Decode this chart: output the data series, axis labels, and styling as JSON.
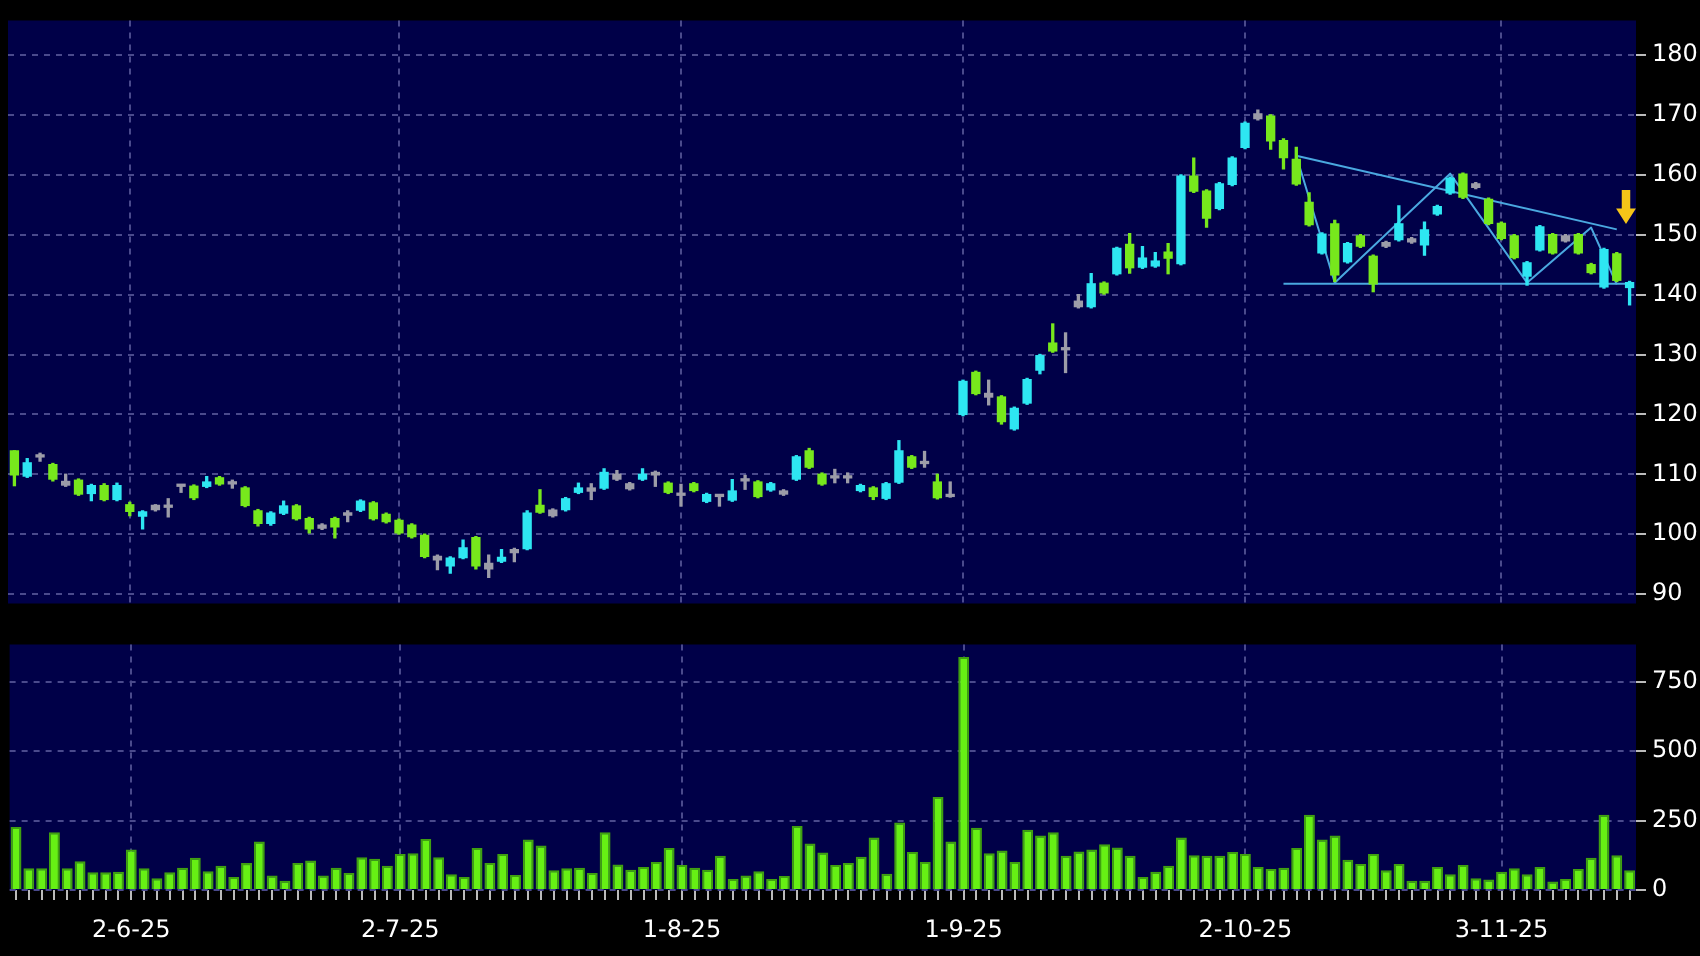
{
  "chart_data": [
    {
      "type": "candlestick",
      "categories": [
        null,
        null,
        null,
        null,
        null,
        null,
        null,
        null,
        null,
        null,
        null,
        null,
        null,
        null,
        null,
        null,
        null,
        null,
        null,
        null,
        null,
        null,
        null,
        null,
        null,
        null,
        null,
        null,
        null,
        null,
        null,
        null,
        null,
        null,
        null,
        null,
        null,
        null,
        null,
        null,
        null,
        null,
        null,
        null,
        null,
        null,
        null,
        null,
        null,
        null,
        null,
        null,
        null,
        null,
        null,
        null,
        null,
        null,
        null,
        null,
        null,
        null,
        null,
        null,
        null,
        null,
        null,
        null,
        null,
        null,
        null,
        null,
        null,
        null,
        null,
        null,
        null,
        null,
        null,
        null,
        null,
        null,
        null,
        null,
        null,
        null,
        null,
        null,
        null,
        null,
        null,
        null,
        null,
        null,
        null,
        null,
        null,
        null,
        null,
        null,
        null,
        null,
        null,
        null,
        null,
        null,
        null,
        null,
        null,
        null,
        null,
        null,
        null,
        null,
        null,
        null,
        null,
        null,
        null,
        null,
        null,
        null,
        null,
        null,
        null,
        null,
        null
      ],
      "ohlc": [
        [
          113.9,
          113.9,
          108.1,
          109.9
        ],
        [
          109.7,
          112.6,
          109.5,
          111.9
        ],
        [
          112.9,
          113.5,
          112.2,
          112.9
        ],
        [
          111.6,
          111.8,
          108.9,
          109.2
        ],
        [
          108.8,
          110.0,
          108.0,
          108.2
        ],
        [
          109.0,
          109.2,
          106.5,
          106.7
        ],
        [
          106.8,
          108.3,
          105.6,
          108.1
        ],
        [
          108.1,
          108.4,
          105.6,
          105.8
        ],
        [
          105.8,
          108.5,
          105.6,
          108.1
        ],
        [
          104.9,
          105.3,
          103.1,
          103.8
        ],
        [
          103.0,
          103.9,
          100.9,
          103.7
        ],
        [
          104.1,
          104.9,
          103.9,
          104.8
        ],
        [
          104.5,
          105.9,
          102.9,
          104.5
        ],
        [
          108.0,
          108.2,
          107.0,
          108.0
        ],
        [
          108.0,
          108.2,
          105.8,
          106.1
        ],
        [
          108.0,
          109.6,
          107.8,
          108.7
        ],
        [
          109.4,
          109.6,
          108.2,
          108.4
        ],
        [
          108.4,
          109.0,
          107.7,
          108.4
        ],
        [
          107.7,
          107.9,
          104.6,
          104.8
        ],
        [
          103.9,
          104.1,
          101.4,
          101.8
        ],
        [
          101.8,
          103.7,
          101.5,
          103.5
        ],
        [
          103.5,
          105.5,
          103.3,
          104.7
        ],
        [
          104.7,
          104.9,
          102.4,
          102.6
        ],
        [
          102.6,
          102.8,
          100.2,
          100.9
        ],
        [
          101.5,
          101.7,
          100.8,
          101.0
        ],
        [
          102.6,
          102.8,
          99.4,
          101.2
        ],
        [
          103.2,
          103.9,
          102.1,
          103.2
        ],
        [
          104.0,
          105.7,
          103.8,
          105.5
        ],
        [
          105.2,
          105.4,
          102.4,
          102.6
        ],
        [
          103.3,
          103.5,
          101.9,
          102.1
        ],
        [
          102.3,
          102.5,
          100.0,
          100.2
        ],
        [
          101.5,
          101.7,
          99.4,
          99.6
        ],
        [
          99.8,
          100.0,
          96.1,
          96.3
        ],
        [
          96.3,
          96.5,
          94.1,
          95.7
        ],
        [
          94.7,
          96.2,
          93.5,
          96.0
        ],
        [
          96.1,
          99.0,
          95.9,
          97.7
        ],
        [
          99.4,
          99.6,
          94.2,
          94.7
        ],
        [
          95.1,
          96.5,
          92.8,
          94.2
        ],
        [
          95.5,
          97.4,
          95.3,
          96.1
        ],
        [
          97.4,
          97.6,
          95.4,
          96.9
        ],
        [
          97.6,
          103.9,
          97.4,
          103.5
        ],
        [
          104.8,
          107.4,
          103.5,
          103.7
        ],
        [
          104.0,
          104.2,
          102.9,
          103.1
        ],
        [
          104.1,
          106.1,
          103.9,
          105.9
        ],
        [
          107.0,
          108.5,
          106.8,
          107.7
        ],
        [
          107.7,
          108.4,
          105.8,
          107.2
        ],
        [
          107.7,
          110.9,
          107.5,
          110.3
        ],
        [
          110.0,
          110.6,
          109.0,
          109.2
        ],
        [
          108.4,
          108.6,
          107.4,
          107.6
        ],
        [
          109.2,
          110.9,
          109.0,
          110.0
        ],
        [
          110.3,
          110.5,
          108.0,
          109.9
        ],
        [
          108.5,
          108.7,
          106.8,
          107.0
        ],
        [
          106.5,
          108.3,
          104.7,
          106.5
        ],
        [
          108.4,
          108.6,
          107.1,
          107.3
        ],
        [
          105.5,
          106.8,
          105.3,
          106.6
        ],
        [
          106.5,
          106.5,
          104.7,
          106.3
        ],
        [
          105.7,
          109.1,
          105.5,
          107.2
        ],
        [
          108.9,
          109.8,
          107.5,
          108.9
        ],
        [
          108.7,
          108.9,
          106.1,
          106.3
        ],
        [
          107.4,
          108.6,
          107.2,
          108.4
        ],
        [
          107.2,
          107.4,
          106.5,
          106.7
        ],
        [
          109.2,
          113.1,
          109.0,
          112.9
        ],
        [
          113.9,
          114.3,
          111.0,
          111.2
        ],
        [
          110.0,
          110.2,
          108.2,
          108.4
        ],
        [
          109.4,
          110.8,
          108.6,
          109.4
        ],
        [
          109.4,
          110.2,
          108.6,
          109.4
        ],
        [
          107.3,
          108.3,
          107.1,
          108.1
        ],
        [
          107.7,
          107.9,
          105.8,
          106.3
        ],
        [
          106.0,
          108.6,
          105.8,
          108.4
        ],
        [
          108.7,
          115.6,
          108.5,
          113.9
        ],
        [
          112.9,
          113.1,
          111.0,
          111.2
        ],
        [
          111.8,
          113.8,
          111.2,
          111.8
        ],
        [
          108.7,
          110.0,
          105.9,
          106.1
        ],
        [
          106.3,
          108.7,
          106.2,
          106.3
        ],
        [
          120.0,
          125.7,
          119.8,
          125.5
        ],
        [
          127.0,
          127.2,
          123.3,
          123.5
        ],
        [
          123.5,
          125.7,
          121.6,
          122.9
        ],
        [
          122.9,
          123.1,
          118.4,
          118.8
        ],
        [
          117.6,
          121.2,
          117.4,
          121.0
        ],
        [
          121.9,
          126.0,
          121.7,
          125.8
        ],
        [
          127.4,
          130.0,
          126.8,
          129.8
        ],
        [
          131.9,
          135.1,
          130.4,
          130.6
        ],
        [
          130.8,
          133.6,
          127.0,
          130.8
        ],
        [
          138.9,
          140.0,
          137.8,
          138.0
        ],
        [
          138.0,
          143.5,
          137.8,
          141.8
        ],
        [
          141.9,
          142.1,
          140.1,
          140.3
        ],
        [
          143.5,
          147.9,
          143.3,
          147.7
        ],
        [
          148.4,
          150.2,
          143.6,
          144.5
        ],
        [
          144.6,
          148.0,
          144.4,
          146.1
        ],
        [
          144.8,
          147.0,
          144.6,
          145.6
        ],
        [
          147.1,
          148.5,
          143.5,
          146.1
        ],
        [
          145.2,
          160.0,
          145.0,
          159.8
        ],
        [
          159.8,
          162.8,
          157.1,
          157.3
        ],
        [
          157.3,
          157.5,
          151.3,
          152.8
        ],
        [
          154.4,
          158.7,
          154.2,
          158.5
        ],
        [
          158.4,
          163.0,
          158.2,
          162.8
        ],
        [
          164.6,
          168.8,
          164.4,
          168.6
        ],
        [
          170.2,
          170.8,
          169.2,
          169.4
        ],
        [
          169.8,
          170.0,
          164.3,
          165.7
        ],
        [
          165.7,
          166.0,
          161.0,
          162.9
        ],
        [
          162.6,
          164.6,
          158.3,
          158.5
        ],
        [
          155.4,
          157.0,
          151.5,
          151.7
        ],
        [
          147.0,
          150.3,
          146.8,
          150.1
        ],
        [
          151.8,
          152.4,
          142.2,
          143.3
        ],
        [
          145.5,
          148.7,
          145.3,
          148.5
        ],
        [
          149.8,
          150.0,
          147.9,
          148.1
        ],
        [
          146.4,
          146.6,
          140.5,
          141.8
        ],
        [
          148.7,
          148.9,
          147.9,
          148.1
        ],
        [
          149.2,
          154.8,
          149.0,
          151.8
        ],
        [
          149.3,
          149.5,
          148.6,
          148.8
        ],
        [
          148.3,
          152.1,
          146.6,
          150.8
        ],
        [
          153.5,
          154.9,
          153.3,
          154.7
        ],
        [
          157.0,
          159.6,
          156.8,
          159.4
        ],
        [
          160.1,
          160.3,
          156.1,
          156.3
        ],
        [
          158.5,
          158.7,
          157.7,
          157.9
        ],
        [
          155.9,
          156.1,
          151.7,
          151.9
        ],
        [
          151.9,
          152.1,
          149.2,
          149.4
        ],
        [
          149.8,
          150.0,
          146.0,
          146.2
        ],
        [
          143.1,
          145.5,
          141.6,
          145.3
        ],
        [
          147.5,
          151.5,
          147.3,
          151.3
        ],
        [
          150.0,
          150.2,
          146.8,
          147.0
        ],
        [
          149.8,
          150.0,
          148.8,
          149.0
        ],
        [
          150.0,
          150.2,
          146.8,
          147.0
        ],
        [
          145.0,
          145.2,
          143.5,
          143.7
        ],
        [
          141.3,
          147.7,
          141.1,
          147.5
        ],
        [
          146.8,
          147.0,
          142.2,
          142.4
        ],
        [
          141.2,
          142.2,
          138.3,
          142.0
        ]
      ],
      "colors": [
        "#77e81c",
        "#2ee6f2",
        "#9c9ca8",
        "#77e81c",
        "#9c9ca8",
        "#77e81c",
        "#2ee6f2",
        "#77e81c",
        "#2ee6f2",
        "#77e81c",
        "#2ee6f2",
        "#9c9ca8",
        "#9c9ca8",
        "#9c9ca8",
        "#77e81c",
        "#2ee6f2",
        "#77e81c",
        "#9c9ca8",
        "#77e81c",
        "#77e81c",
        "#2ee6f2",
        "#2ee6f2",
        "#77e81c",
        "#77e81c",
        "#9c9ca8",
        "#77e81c",
        "#9c9ca8",
        "#2ee6f2",
        "#77e81c",
        "#77e81c",
        "#77e81c",
        "#77e81c",
        "#77e81c",
        "#9c9ca8",
        "#2ee6f2",
        "#2ee6f2",
        "#77e81c",
        "#9c9ca8",
        "#2ee6f2",
        "#9c9ca8",
        "#2ee6f2",
        "#77e81c",
        "#9c9ca8",
        "#2ee6f2",
        "#2ee6f2",
        "#9c9ca8",
        "#2ee6f2",
        "#9c9ca8",
        "#9c9ca8",
        "#2ee6f2",
        "#9c9ca8",
        "#77e81c",
        "#9c9ca8",
        "#77e81c",
        "#2ee6f2",
        "#9c9ca8",
        "#2ee6f2",
        "#9c9ca8",
        "#77e81c",
        "#2ee6f2",
        "#9c9ca8",
        "#2ee6f2",
        "#77e81c",
        "#77e81c",
        "#9c9ca8",
        "#9c9ca8",
        "#2ee6f2",
        "#77e81c",
        "#2ee6f2",
        "#2ee6f2",
        "#77e81c",
        "#9c9ca8",
        "#77e81c",
        "#9c9ca8",
        "#2ee6f2",
        "#77e81c",
        "#9c9ca8",
        "#77e81c",
        "#2ee6f2",
        "#2ee6f2",
        "#2ee6f2",
        "#77e81c",
        "#9c9ca8",
        "#9c9ca8",
        "#2ee6f2",
        "#77e81c",
        "#2ee6f2",
        "#77e81c",
        "#2ee6f2",
        "#2ee6f2",
        "#77e81c",
        "#2ee6f2",
        "#77e81c",
        "#77e81c",
        "#2ee6f2",
        "#2ee6f2",
        "#2ee6f2",
        "#9c9ca8",
        "#77e81c",
        "#77e81c",
        "#77e81c",
        "#77e81c",
        "#2ee6f2",
        "#77e81c",
        "#2ee6f2",
        "#77e81c",
        "#77e81c",
        "#9c9ca8",
        "#2ee6f2",
        "#9c9ca8",
        "#2ee6f2",
        "#2ee6f2",
        "#2ee6f2",
        "#77e81c",
        "#9c9ca8",
        "#77e81c",
        "#77e81c",
        "#77e81c",
        "#2ee6f2",
        "#2ee6f2",
        "#77e81c",
        "#9c9ca8",
        "#77e81c",
        "#77e81c",
        "#2ee6f2",
        "#77e81c",
        "#2ee6f2"
      ],
      "series": [
        {
          "type": "line",
          "color": "#4aa8e0",
          "values": [
            null,
            null,
            null,
            null,
            null,
            null,
            null,
            null,
            null,
            null,
            null,
            null,
            null,
            null,
            null,
            null,
            null,
            null,
            null,
            null,
            null,
            null,
            null,
            null,
            null,
            null,
            null,
            null,
            null,
            null,
            null,
            null,
            null,
            null,
            null,
            null,
            null,
            null,
            null,
            null,
            null,
            null,
            null,
            null,
            null,
            null,
            null,
            null,
            null,
            null,
            null,
            null,
            null,
            null,
            null,
            null,
            null,
            null,
            null,
            null,
            null,
            null,
            null,
            null,
            null,
            null,
            null,
            null,
            null,
            null,
            null,
            null,
            null,
            null,
            null,
            null,
            null,
            null,
            null,
            null,
            null,
            null,
            null,
            null,
            null,
            null,
            null,
            null,
            null,
            null,
            null,
            null,
            null,
            null,
            null,
            null,
            null,
            null,
            null,
            null,
            163.2,
            null,
            null,
            142.0,
            null,
            null,
            null,
            null,
            null,
            null,
            null,
            null,
            160.2,
            null,
            null,
            null,
            null,
            null,
            142.0,
            null,
            null,
            null,
            null,
            151.2,
            null,
            141.7,
            null
          ]
        },
        {
          "type": "line",
          "color": "#4aa8e0",
          "values": [
            null,
            null,
            null,
            null,
            null,
            null,
            null,
            null,
            null,
            null,
            null,
            null,
            null,
            null,
            null,
            null,
            null,
            null,
            null,
            null,
            null,
            null,
            null,
            null,
            null,
            null,
            null,
            null,
            null,
            null,
            null,
            null,
            null,
            null,
            null,
            null,
            null,
            null,
            null,
            null,
            null,
            null,
            null,
            null,
            null,
            null,
            null,
            null,
            null,
            null,
            null,
            null,
            null,
            null,
            null,
            null,
            null,
            null,
            null,
            null,
            null,
            null,
            null,
            null,
            null,
            null,
            null,
            null,
            null,
            null,
            null,
            null,
            null,
            null,
            null,
            null,
            null,
            null,
            null,
            null,
            null,
            null,
            null,
            null,
            null,
            null,
            null,
            null,
            null,
            null,
            null,
            null,
            null,
            null,
            null,
            null,
            null,
            null,
            null,
            null,
            163.2,
            null,
            null,
            null,
            null,
            null,
            null,
            null,
            null,
            null,
            null,
            null,
            null,
            null,
            null,
            null,
            null,
            null,
            null,
            null,
            null,
            null,
            null,
            null,
            null,
            150.9,
            null
          ]
        },
        {
          "type": "line",
          "color": "#4aa8e0",
          "values": [
            null,
            null,
            null,
            null,
            null,
            null,
            null,
            null,
            null,
            null,
            null,
            null,
            null,
            null,
            null,
            null,
            null,
            null,
            null,
            null,
            null,
            null,
            null,
            null,
            null,
            null,
            null,
            null,
            null,
            null,
            null,
            null,
            null,
            null,
            null,
            null,
            null,
            null,
            null,
            null,
            null,
            null,
            null,
            null,
            null,
            null,
            null,
            null,
            null,
            null,
            null,
            null,
            null,
            null,
            null,
            null,
            null,
            null,
            null,
            null,
            null,
            null,
            null,
            null,
            null,
            null,
            null,
            null,
            null,
            null,
            null,
            null,
            null,
            null,
            null,
            null,
            null,
            null,
            null,
            null,
            null,
            null,
            null,
            null,
            null,
            null,
            null,
            null,
            null,
            null,
            null,
            null,
            null,
            null,
            null,
            null,
            null,
            null,
            null,
            141.8,
            null,
            null,
            null,
            null,
            null,
            null,
            null,
            null,
            null,
            null,
            null,
            null,
            null,
            null,
            null,
            null,
            null,
            null,
            null,
            null,
            null,
            null,
            null,
            null,
            null,
            null,
            141.8
          ]
        }
      ],
      "ylim": [
        88.4,
        185.8
      ],
      "yticks": [
        90,
        100,
        110,
        120,
        130,
        140,
        150,
        160,
        170,
        180
      ],
      "grid": true,
      "tick_labels": "y"
    },
    {
      "type": "bar",
      "categories": [
        null,
        null,
        null,
        null,
        null,
        null,
        null,
        null,
        null,
        "2-6-25",
        null,
        null,
        null,
        null,
        null,
        null,
        null,
        null,
        null,
        null,
        null,
        null,
        null,
        null,
        null,
        null,
        null,
        null,
        null,
        null,
        "2-7-25",
        null,
        null,
        null,
        null,
        null,
        null,
        null,
        null,
        null,
        null,
        null,
        null,
        null,
        null,
        null,
        null,
        null,
        null,
        null,
        null,
        null,
        "1-8-25",
        null,
        null,
        null,
        null,
        null,
        null,
        null,
        null,
        null,
        null,
        null,
        null,
        null,
        null,
        null,
        null,
        null,
        null,
        null,
        null,
        null,
        "1-9-25",
        null,
        null,
        null,
        null,
        null,
        null,
        null,
        null,
        null,
        null,
        null,
        null,
        null,
        null,
        null,
        null,
        null,
        null,
        null,
        null,
        null,
        "2-10-25",
        null,
        null,
        null,
        null,
        null,
        null,
        null,
        null,
        null,
        null,
        null,
        null,
        null,
        null,
        null,
        null,
        null,
        null,
        null,
        "3-11-25",
        null,
        null,
        null,
        null,
        null,
        null,
        null,
        null,
        null,
        null
      ],
      "values": [
        227,
        78,
        78,
        208,
        78,
        104,
        64,
        64,
        66,
        146,
        78,
        42,
        64,
        80,
        116,
        68,
        87,
        47,
        97,
        175,
        52,
        33,
        97,
        106,
        52,
        80,
        61,
        118,
        113,
        87,
        130,
        132,
        184,
        118,
        57,
        47,
        151,
        97,
        130,
        54,
        182,
        160,
        71,
        78,
        80,
        61,
        208,
        92,
        73,
        83,
        101,
        151,
        90,
        80,
        73,
        123,
        40,
        52,
        68,
        40,
        50,
        231,
        168,
        135,
        90,
        97,
        120,
        189,
        59,
        243,
        137,
        101,
        335,
        175,
        840,
        224,
        132,
        142,
        101,
        217,
        196,
        208,
        123,
        139,
        146,
        165,
        153,
        123,
        47,
        66,
        87,
        189,
        125,
        123,
        123,
        137,
        130,
        83,
        76,
        80,
        151,
        271,
        182,
        196,
        109,
        94,
        130,
        71,
        94,
        33,
        33,
        83,
        57,
        90,
        42,
        38,
        66,
        78,
        57,
        83,
        31,
        40,
        76,
        116,
        271,
        125,
        71
      ],
      "color": "#66f014",
      "ylim": [
        0,
        885
      ],
      "yticks": [
        0,
        250,
        500,
        750
      ],
      "grid": true
    }
  ]
}
